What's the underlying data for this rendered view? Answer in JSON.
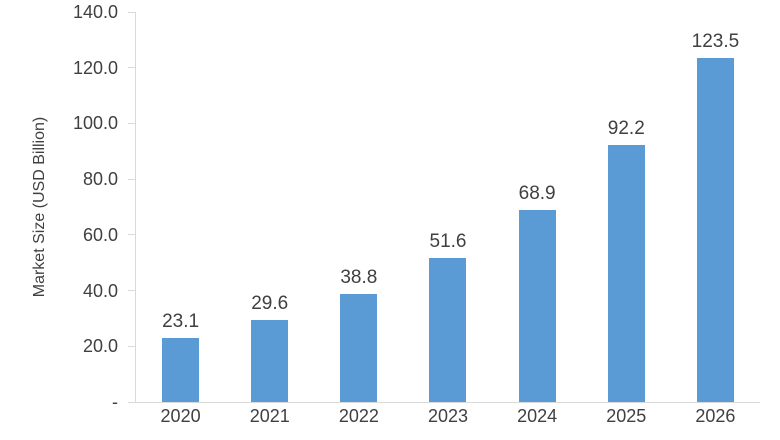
{
  "chart_data": {
    "type": "bar",
    "title": "",
    "categories": [
      "2020",
      "2021",
      "2022",
      "2023",
      "2024",
      "2025",
      "2026"
    ],
    "values": [
      23.1,
      29.6,
      38.8,
      51.6,
      68.9,
      92.2,
      123.5
    ],
    "value_labels": [
      "23.1",
      "29.6",
      "38.8",
      "51.6",
      "68.9",
      "92.2",
      "123.5"
    ],
    "xlabel": "",
    "ylabel": "Market Size (USD Billion)",
    "ylim": [
      0,
      140
    ],
    "y_ticks": [
      {
        "value": 140,
        "label": "140.0"
      },
      {
        "value": 120,
        "label": "120.0"
      },
      {
        "value": 100,
        "label": "100.0"
      },
      {
        "value": 80,
        "label": "80.0"
      },
      {
        "value": 60,
        "label": "60.0"
      },
      {
        "value": 40,
        "label": "40.0"
      },
      {
        "value": 20,
        "label": "20.0"
      },
      {
        "value": 0,
        "label": "-"
      }
    ],
    "grid": false,
    "legend_position": "none",
    "colors": {
      "bar": "#5b9bd5",
      "axis": "#d9d9d9",
      "text": "#404040"
    }
  }
}
